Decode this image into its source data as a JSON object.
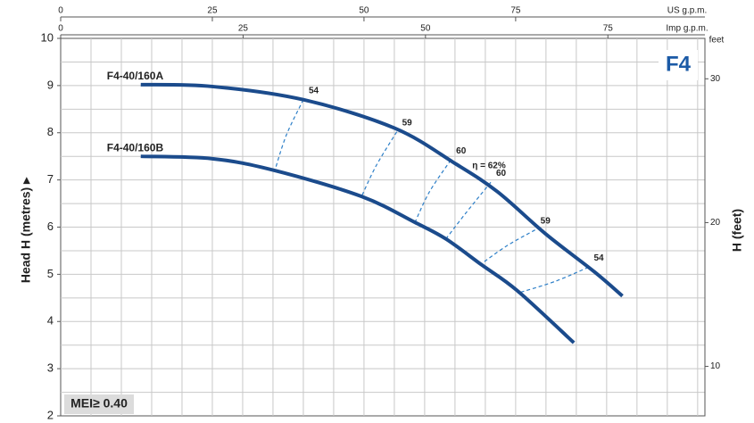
{
  "chart_data": {
    "type": "line",
    "badge": "F4",
    "note": "MEI≥ 0.40",
    "ylabel": "Head H (metres) ▸",
    "y2label": "H (feet)",
    "y2unit": "feet",
    "xlabel": "US g.p.m.",
    "x2label": "Imp g.p.m.",
    "xlim": [
      0,
      106.2
    ],
    "xticks": [
      0,
      25,
      50,
      75
    ],
    "x2lim": [
      0,
      88.3
    ],
    "x2ticks": [
      0,
      25,
      50,
      75
    ],
    "ylim": [
      2,
      10
    ],
    "yticks": [
      2,
      3,
      4,
      5,
      6,
      7,
      8,
      9,
      10
    ],
    "y2lim": [
      6.56,
      32.81
    ],
    "y2ticks": [
      10,
      20,
      30
    ],
    "grid": true,
    "series": [
      {
        "name": "F4-40/160A",
        "color": "#1b4b8c",
        "x": [
          13.2,
          25,
          40,
          55,
          65,
          72,
          80,
          88,
          92.6
        ],
        "y": [
          9.02,
          8.98,
          8.7,
          8.1,
          7.35,
          6.75,
          5.85,
          5.05,
          4.54
        ]
      },
      {
        "name": "F4-40/160B",
        "color": "#1b4b8c",
        "x": [
          13.2,
          25,
          35.3,
          49.6,
          58.4,
          63.5,
          69.4,
          75.3,
          84.6
        ],
        "y": [
          7.5,
          7.45,
          7.2,
          6.65,
          6.1,
          5.75,
          5.2,
          4.65,
          3.55
        ]
      }
    ],
    "efficiency": {
      "color": "#2d7fc8",
      "lines": [
        {
          "label": "54",
          "x": [
            40,
            37.2,
            35.3
          ],
          "y": [
            8.7,
            7.95,
            7.2
          ]
        },
        {
          "label": "59",
          "x": [
            55.4,
            52,
            49.6
          ],
          "y": [
            8.02,
            7.3,
            6.65
          ]
        },
        {
          "label": "60",
          "x": [
            64.3,
            60.8,
            58.4
          ],
          "y": [
            7.42,
            6.75,
            6.1
          ]
        },
        {
          "label": "60",
          "x": [
            70.9,
            66.8,
            63.5
          ],
          "y": [
            6.95,
            6.3,
            5.75
          ]
        },
        {
          "label": "59",
          "x": [
            78.2,
            73.5,
            69.1
          ],
          "y": [
            5.94,
            5.6,
            5.2
          ]
        },
        {
          "label": "54",
          "x": [
            87,
            81.5,
            75.3
          ],
          "y": [
            5.15,
            4.85,
            4.6
          ]
        }
      ]
    },
    "peak_label": "η = 62%"
  }
}
